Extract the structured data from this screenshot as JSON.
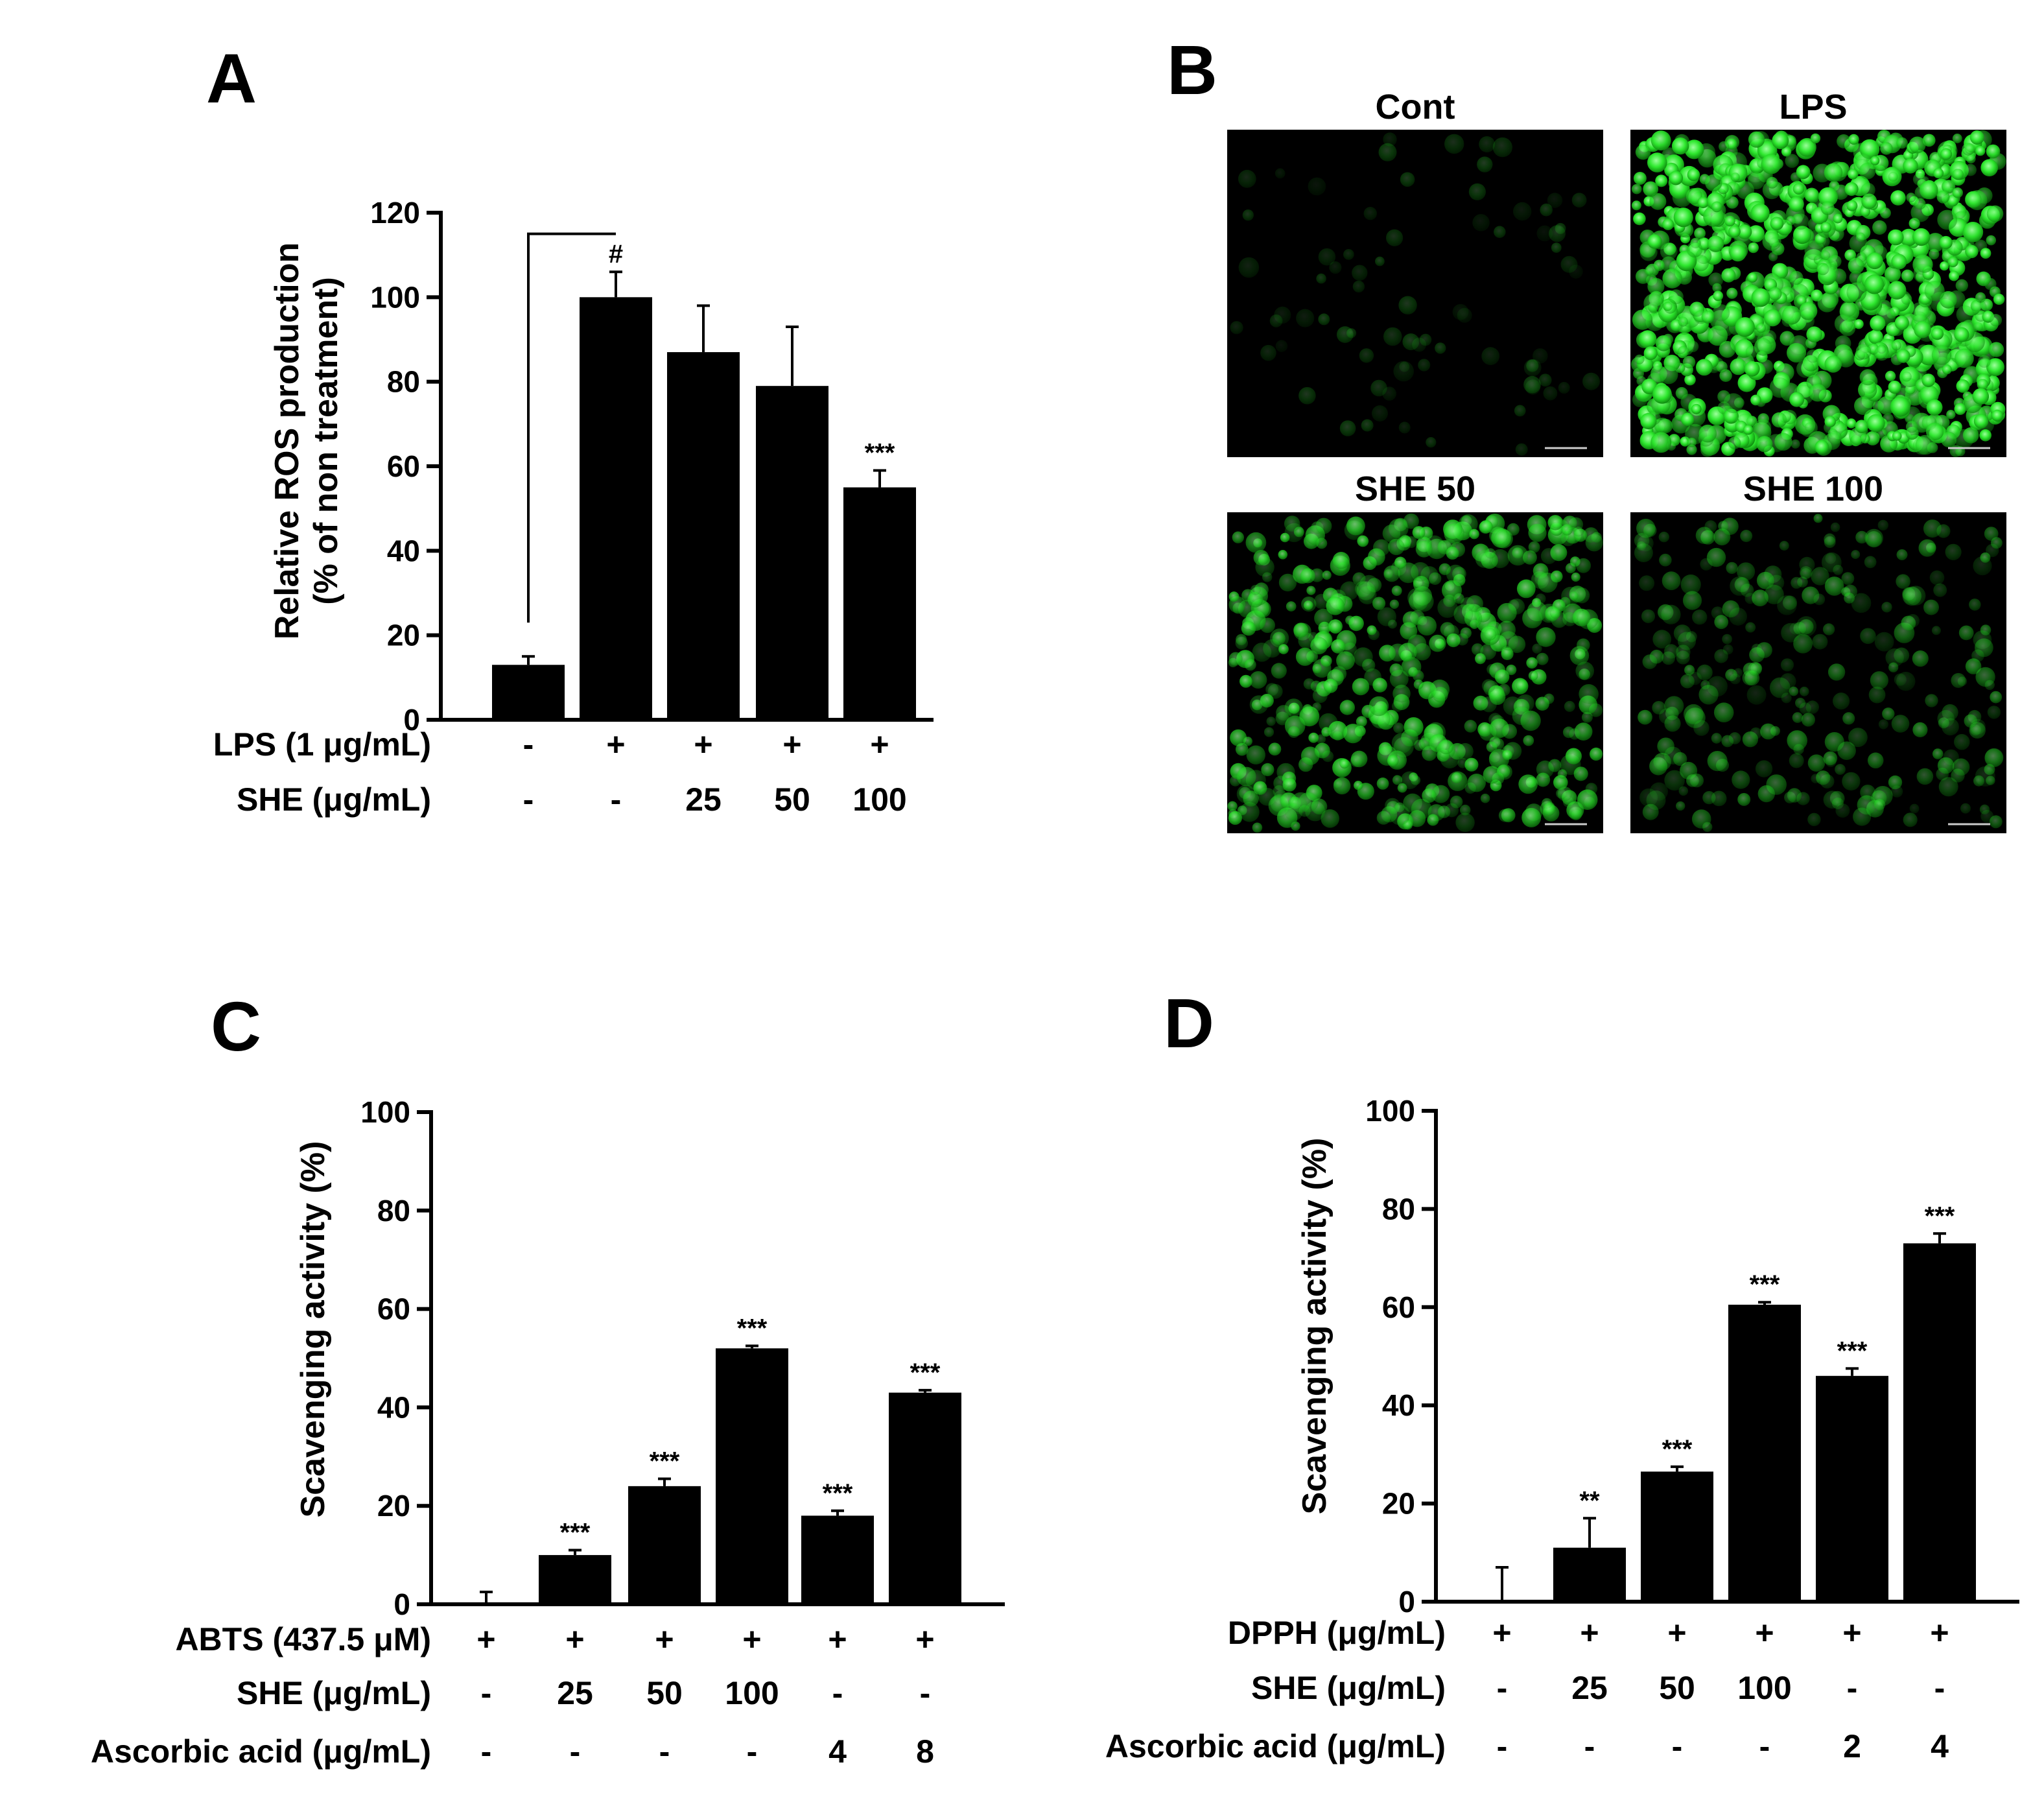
{
  "figure": {
    "panels": [
      "A",
      "B",
      "C",
      "D"
    ]
  },
  "micrographs": {
    "labels": [
      "Cont",
      "LPS",
      "SHE 50",
      "SHE 100"
    ],
    "fluorescence_color": "#2ee82e",
    "relative_intensity": [
      0.05,
      1.0,
      0.55,
      0.28
    ]
  },
  "chart_data": [
    {
      "panel": "A",
      "type": "bar",
      "ylabel": [
        "Relative ROS production",
        "(% of non treatment)"
      ],
      "ylim": [
        0,
        120
      ],
      "yticks": [
        0,
        20,
        40,
        60,
        80,
        100,
        120
      ],
      "values": [
        13,
        100,
        87,
        79,
        55
      ],
      "errors": [
        2,
        6,
        11,
        14,
        4
      ],
      "annotations": [
        "",
        "#",
        "",
        "",
        "***"
      ],
      "condition_rows": [
        {
          "label": "LPS (1 μg/mL)",
          "values": [
            "-",
            "+",
            "+",
            "+",
            "+"
          ]
        },
        {
          "label": "SHE (μg/mL)",
          "values": [
            "-",
            "-",
            "25",
            "50",
            "100"
          ]
        }
      ]
    },
    {
      "panel": "C",
      "type": "bar",
      "ylabel": [
        "Scavenging activity (%)"
      ],
      "ylim": [
        0,
        100
      ],
      "yticks": [
        0,
        20,
        40,
        60,
        80,
        100
      ],
      "values": [
        0,
        10,
        24,
        52,
        18,
        43
      ],
      "errors": [
        2.5,
        1,
        1.5,
        0.5,
        1,
        0.5
      ],
      "annotations": [
        "",
        "***",
        "***",
        "***",
        "***",
        "***"
      ],
      "condition_rows": [
        {
          "label": "ABTS (437.5 μM)",
          "values": [
            "+",
            "+",
            "+",
            "+",
            "+",
            "+"
          ]
        },
        {
          "label": "SHE (μg/mL)",
          "values": [
            "-",
            "25",
            "50",
            "100",
            "-",
            "-"
          ]
        },
        {
          "label": "Ascorbic acid (μg/mL)",
          "values": [
            "-",
            "-",
            "-",
            "-",
            "4",
            "8"
          ]
        }
      ]
    },
    {
      "panel": "D",
      "type": "bar",
      "ylabel": [
        "Scavenging activity (%)"
      ],
      "ylim": [
        0,
        100
      ],
      "yticks": [
        0,
        20,
        40,
        60,
        80,
        100
      ],
      "values": [
        0,
        11,
        26.5,
        60.5,
        46,
        73
      ],
      "errors": [
        7,
        6,
        1,
        0.5,
        1.5,
        2
      ],
      "annotations": [
        "",
        "**",
        "***",
        "***",
        "***",
        "***"
      ],
      "condition_rows": [
        {
          "label": "DPPH (μg/mL)",
          "values": [
            "+",
            "+",
            "+",
            "+",
            "+",
            "+"
          ]
        },
        {
          "label": "SHE (μg/mL)",
          "values": [
            "-",
            "25",
            "50",
            "100",
            "-",
            "-"
          ]
        },
        {
          "label": "Ascorbic acid (μg/mL)",
          "values": [
            "-",
            "-",
            "-",
            "-",
            "2",
            "4"
          ]
        }
      ]
    }
  ]
}
